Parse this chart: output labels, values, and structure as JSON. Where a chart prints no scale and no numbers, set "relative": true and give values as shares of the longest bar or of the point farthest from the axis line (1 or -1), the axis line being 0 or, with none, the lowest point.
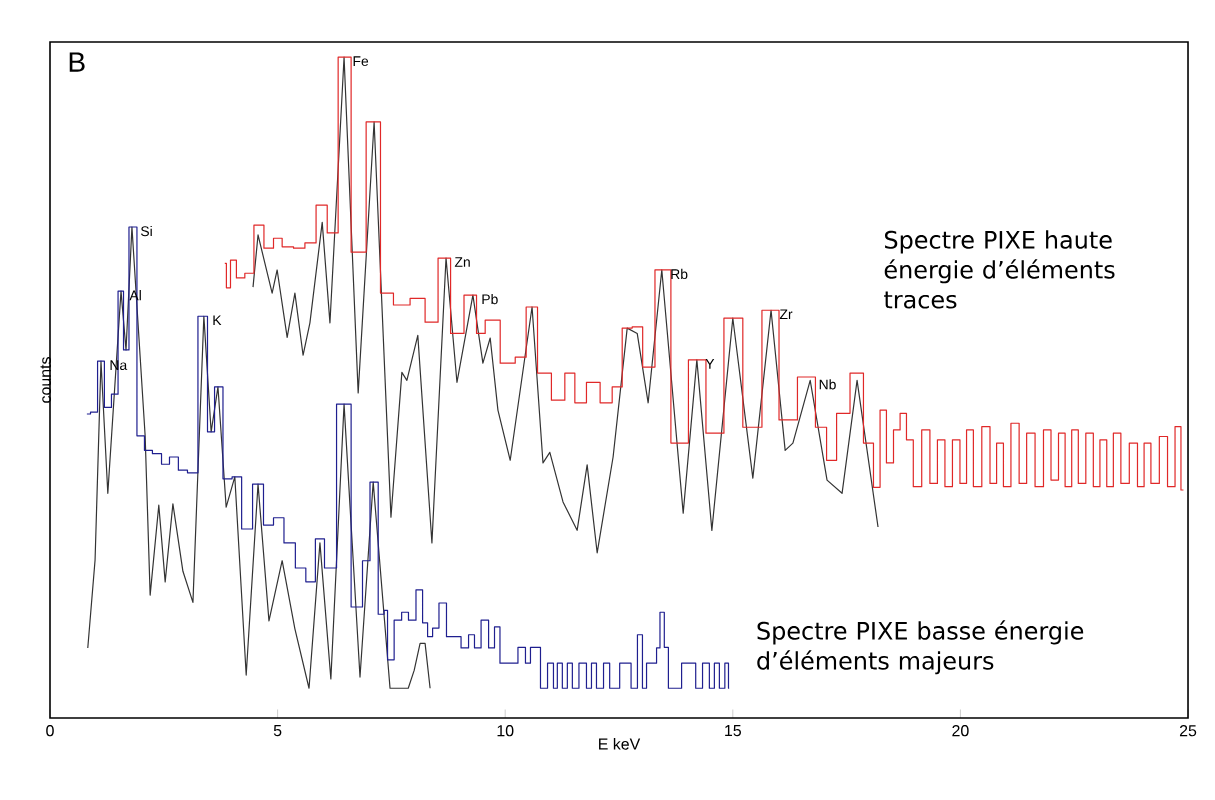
{
  "chart_data": {
    "type": "line",
    "relative": true,
    "xlabel": "E keV",
    "ylabel": "counts",
    "xlim": [
      0,
      25
    ],
    "xticks": [
      0,
      5,
      10,
      15,
      20,
      25
    ],
    "annotations": [
      "B",
      {
        "text": "Na",
        "x": 1.12,
        "y": 0.54
      },
      {
        "text": "Al",
        "x": 1.56,
        "y": 0.646
      },
      {
        "text": "Si",
        "x": 1.8,
        "y": 0.743
      },
      {
        "text": "K",
        "x": 3.38,
        "y": 0.608
      },
      {
        "text": "Fe",
        "x": 6.46,
        "y": 1.0
      },
      {
        "text": "Zn",
        "x": 8.7,
        "y": 0.696
      },
      {
        "text": "Pb",
        "x": 9.29,
        "y": 0.64
      },
      {
        "text": "Rb",
        "x": 13.44,
        "y": 0.678
      },
      {
        "text": "Y",
        "x": 14.21,
        "y": 0.542
      },
      {
        "text": "Zr",
        "x": 15.84,
        "y": 0.617
      },
      {
        "text": "Nb",
        "x": 16.7,
        "y": 0.511
      }
    ],
    "series": [
      {
        "type": "line",
        "color": "#333333",
        "x": [
          0.83,
          0.99,
          1.12,
          1.27,
          1.56,
          1.67,
          1.8,
          2.09,
          2.2,
          2.39,
          2.53,
          2.7,
          2.92,
          3.14,
          3.38,
          3.54,
          3.69,
          3.87,
          4.06,
          4.31,
          4.57,
          4.81,
          5.1,
          5.38,
          5.69,
          5.93,
          6.17,
          6.46,
          6.81,
          7.1,
          7.47,
          7.87,
          8.0,
          8.13,
          8.24,
          8.35
        ],
        "values": [
          0.106,
          0.239,
          0.54,
          0.34,
          0.646,
          0.557,
          0.743,
          0.427,
          0.186,
          0.322,
          0.206,
          0.324,
          0.222,
          0.175,
          0.608,
          0.433,
          0.501,
          0.319,
          0.365,
          0.065,
          0.354,
          0.147,
          0.238,
          0.135,
          0.045,
          0.265,
          0.059,
          0.475,
          0.062,
          0.357,
          0.045,
          0.045,
          0.072,
          0.113,
          0.113,
          0.045
        ]
      },
      {
        "type": "line",
        "color": "#333333",
        "x": [
          4.46,
          4.57,
          4.88,
          4.99,
          5.21,
          5.38,
          5.56,
          5.71,
          5.98,
          6.15,
          6.46,
          6.77,
          7.12,
          7.49,
          7.73,
          7.84,
          8.08,
          8.39,
          8.7,
          8.94,
          9.29,
          9.51,
          9.67,
          9.84,
          10.11,
          10.59,
          10.83,
          10.98,
          11.27,
          11.58,
          11.8,
          12.02,
          12.37,
          12.68,
          12.9,
          13.14,
          13.44,
          13.91,
          14.21,
          14.54,
          15.0,
          15.44,
          15.84,
          16.15,
          16.32,
          16.7,
          17.07,
          17.4,
          17.73,
          18.19
        ],
        "values": [
          0.652,
          0.731,
          0.643,
          0.678,
          0.576,
          0.643,
          0.549,
          0.598,
          0.75,
          0.598,
          1.0,
          0.492,
          0.902,
          0.304,
          0.523,
          0.511,
          0.579,
          0.265,
          0.696,
          0.508,
          0.64,
          0.537,
          0.575,
          0.466,
          0.39,
          0.622,
          0.386,
          0.402,
          0.327,
          0.284,
          0.383,
          0.25,
          0.395,
          0.59,
          0.582,
          0.477,
          0.678,
          0.31,
          0.542,
          0.284,
          0.605,
          0.363,
          0.617,
          0.405,
          0.416,
          0.511,
          0.36,
          0.34,
          0.511,
          0.289
        ]
      },
      {
        "type": "step",
        "name": "Spectre PIXE haute énergie d’éléments traces",
        "color": "#e02828",
        "x": [
          3.84,
          3.91,
          4.02,
          4.17,
          4.39,
          4.57,
          4.83,
          4.99,
          5.21,
          5.49,
          5.71,
          5.98,
          6.2,
          6.46,
          6.77,
          7.12,
          7.4,
          7.69,
          8.13,
          8.35,
          8.7,
          8.9,
          9.29,
          9.45,
          9.67,
          10.11,
          10.33,
          10.59,
          10.83,
          11.2,
          11.42,
          11.64,
          11.93,
          12.24,
          12.46,
          12.68,
          12.9,
          13.14,
          13.44,
          13.84,
          14.21,
          14.61,
          15.0,
          15.44,
          15.84,
          16.19,
          16.65,
          16.98,
          17.14,
          17.42,
          17.73,
          18.01,
          18.17,
          18.3,
          18.45,
          18.61,
          18.74,
          18.89,
          19.04,
          19.26,
          19.4,
          19.59,
          19.73,
          19.92,
          20.06,
          20.21,
          20.36,
          20.58,
          20.72,
          20.87,
          21.02,
          21.2,
          21.38,
          21.53,
          21.75,
          21.9,
          22.08,
          22.23,
          22.37,
          22.52,
          22.66,
          22.85,
          22.99,
          23.14,
          23.29,
          23.43,
          23.62,
          23.8,
          23.98,
          24.09,
          24.28,
          24.46,
          24.64,
          24.79,
          24.9
        ],
        "values": [
          0.688,
          0.651,
          0.693,
          0.666,
          0.673,
          0.746,
          0.711,
          0.726,
          0.713,
          0.711,
          0.719,
          0.776,
          0.734,
          1.0,
          0.705,
          0.902,
          0.643,
          0.625,
          0.635,
          0.599,
          0.696,
          0.582,
          0.64,
          0.582,
          0.602,
          0.537,
          0.546,
          0.622,
          0.522,
          0.481,
          0.522,
          0.477,
          0.508,
          0.477,
          0.501,
          0.59,
          0.592,
          0.531,
          0.678,
          0.416,
          0.542,
          0.431,
          0.605,
          0.44,
          0.617,
          0.451,
          0.516,
          0.44,
          0.39,
          0.461,
          0.522,
          0.416,
          0.349,
          0.466,
          0.386,
          0.436,
          0.461,
          0.421,
          0.35,
          0.436,
          0.355,
          0.421,
          0.35,
          0.421,
          0.355,
          0.436,
          0.35,
          0.441,
          0.355,
          0.416,
          0.35,
          0.446,
          0.355,
          0.431,
          0.35,
          0.436,
          0.36,
          0.431,
          0.35,
          0.436,
          0.355,
          0.431,
          0.35,
          0.421,
          0.35,
          0.431,
          0.355,
          0.416,
          0.35,
          0.416,
          0.355,
          0.426,
          0.35,
          0.441,
          0.345
        ]
      },
      {
        "type": "step",
        "name": "Spectre PIXE basse énergie d’éléments majeurs",
        "color": "#1f1f8f",
        "x": [
          0.81,
          0.97,
          1.12,
          1.27,
          1.43,
          1.56,
          1.67,
          1.8,
          2.02,
          2.13,
          2.37,
          2.53,
          2.72,
          2.92,
          3.12,
          3.38,
          3.54,
          3.69,
          3.91,
          4.09,
          4.33,
          4.57,
          4.81,
          5.01,
          5.27,
          5.51,
          5.73,
          5.93,
          6.13,
          6.46,
          6.77,
          6.96,
          7.1,
          7.32,
          7.36,
          7.47,
          7.65,
          7.8,
          7.95,
          8.13,
          8.24,
          8.35,
          8.46,
          8.63,
          8.79,
          8.94,
          9.12,
          9.27,
          9.38,
          9.56,
          9.71,
          9.82,
          9.95,
          10.17,
          10.39,
          10.5,
          10.61,
          10.72,
          10.83,
          11.03,
          11.09,
          11.2,
          11.31,
          11.42,
          11.53,
          11.71,
          11.86,
          11.93,
          12.08,
          12.24,
          12.35,
          12.68,
          12.85,
          12.96,
          13.07,
          13.14,
          13.29,
          13.36,
          13.44,
          13.55,
          13.62,
          14.13,
          14.24,
          14.43,
          14.54,
          14.65,
          14.76,
          14.89,
          14.92
        ],
        "values": [
          0.46,
          0.463,
          0.54,
          0.47,
          0.49,
          0.646,
          0.557,
          0.743,
          0.427,
          0.405,
          0.4,
          0.384,
          0.395,
          0.375,
          0.371,
          0.608,
          0.433,
          0.501,
          0.362,
          0.365,
          0.286,
          0.354,
          0.292,
          0.303,
          0.265,
          0.227,
          0.206,
          0.271,
          0.227,
          0.475,
          0.168,
          0.238,
          0.357,
          0.157,
          0.163,
          0.088,
          0.148,
          0.16,
          0.148,
          0.194,
          0.144,
          0.123,
          0.136,
          0.174,
          0.123,
          0.123,
          0.106,
          0.126,
          0.106,
          0.148,
          0.106,
          0.138,
          0.083,
          0.083,
          0.107,
          0.083,
          0.107,
          0.107,
          0.045,
          0.083,
          0.045,
          0.083,
          0.045,
          0.083,
          0.045,
          0.083,
          0.045,
          0.083,
          0.045,
          0.083,
          0.045,
          0.083,
          0.045,
          0.126,
          0.045,
          0.083,
          0.083,
          0.106,
          0.16,
          0.107,
          0.045,
          0.083,
          0.045,
          0.083,
          0.045,
          0.083,
          0.045,
          0.083,
          0.045
        ]
      }
    ]
  }
}
